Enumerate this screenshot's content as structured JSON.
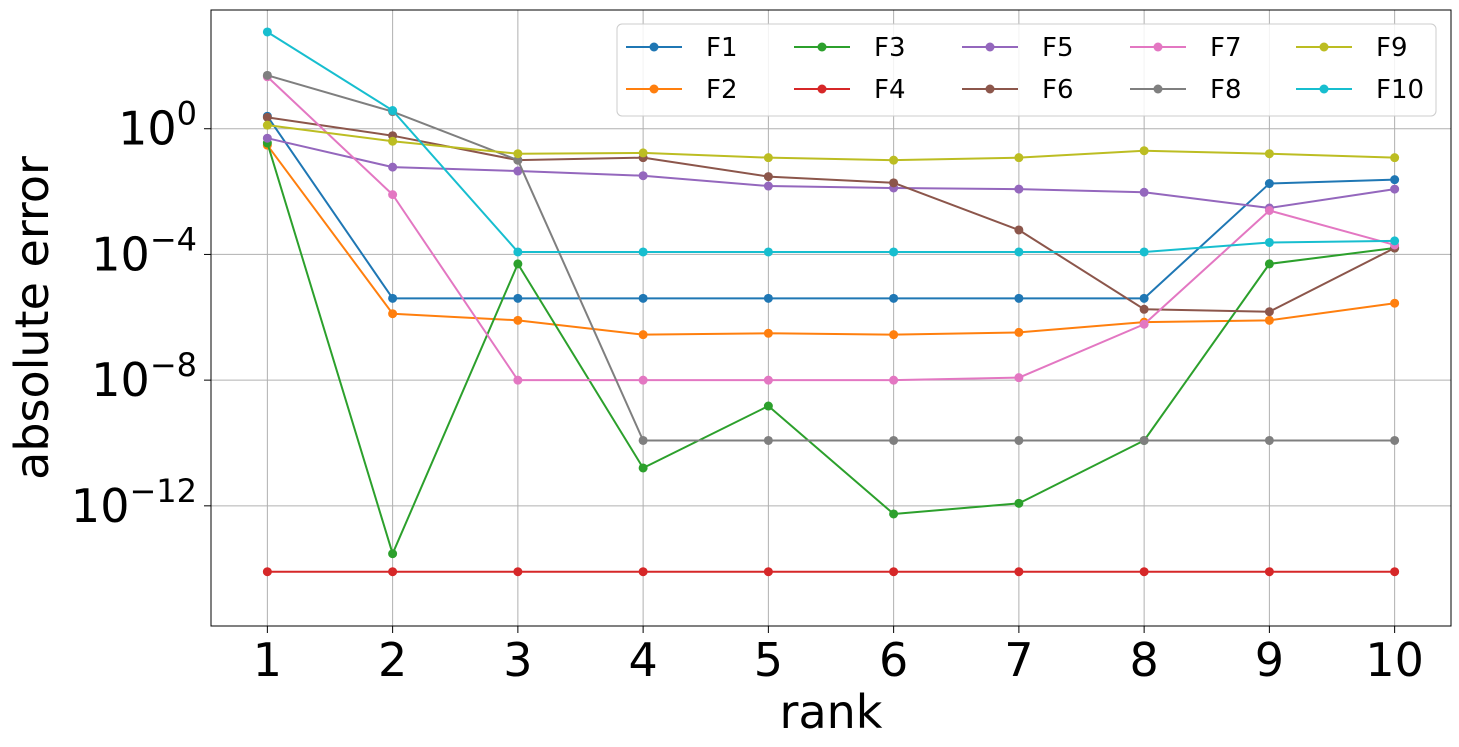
{
  "chart_data": {
    "type": "line",
    "title": "",
    "xlabel": "rank",
    "ylabel": "absolute error",
    "y_scale": "log",
    "x": [
      1,
      2,
      3,
      4,
      5,
      6,
      7,
      8,
      9,
      10
    ],
    "x_ticks": [
      "1",
      "2",
      "3",
      "4",
      "5",
      "6",
      "7",
      "8",
      "9",
      "10"
    ],
    "y_ticks": [
      {
        "value": 1e-12,
        "base": "10",
        "exp": "−12"
      },
      {
        "value": 1e-08,
        "base": "10",
        "exp": "−8"
      },
      {
        "value": 0.0001,
        "base": "10",
        "exp": "−4"
      },
      {
        "value": 1,
        "base": "10",
        "exp": "0"
      }
    ],
    "ylim": [
      1.5e-16,
      6000
    ],
    "xlim": [
      0.55,
      10.45
    ],
    "grid": true,
    "legend_position": "top-right",
    "series": [
      {
        "name": "F1",
        "color": "#1f77b4",
        "values": [
          2.5,
          4e-06,
          4e-06,
          4e-06,
          4e-06,
          4e-06,
          4e-06,
          4e-06,
          0.018,
          0.024
        ]
      },
      {
        "name": "F2",
        "color": "#ff7f0e",
        "values": [
          0.3,
          1.3e-06,
          8e-07,
          2.8e-07,
          3.1e-07,
          2.8e-07,
          3.3e-07,
          7e-07,
          8e-07,
          2.8e-06
        ]
      },
      {
        "name": "F3",
        "color": "#2ca02c",
        "values": [
          0.35,
          3e-14,
          5e-05,
          1.6e-11,
          1.5e-09,
          5.5e-13,
          1.2e-12,
          1.2e-10,
          5e-05,
          0.00016
        ]
      },
      {
        "name": "F4",
        "color": "#d62728",
        "values": [
          8e-15,
          8e-15,
          8e-15,
          8e-15,
          8e-15,
          8e-15,
          8e-15,
          8e-15,
          8e-15,
          8e-15
        ]
      },
      {
        "name": "F5",
        "color": "#9467bd",
        "values": [
          0.5,
          0.06,
          0.045,
          0.032,
          0.015,
          0.013,
          0.012,
          0.0095,
          0.003,
          0.012
        ]
      },
      {
        "name": "F6",
        "color": "#8c564b",
        "values": [
          2.3,
          0.6,
          0.1,
          0.12,
          0.03,
          0.019,
          0.0006,
          1.8e-06,
          1.5e-06,
          0.00016
        ]
      },
      {
        "name": "F7",
        "color": "#e377c2",
        "values": [
          45,
          0.008,
          1e-08,
          1e-08,
          1e-08,
          1e-08,
          1.2e-08,
          6e-07,
          0.0025,
          0.0002
        ]
      },
      {
        "name": "F8",
        "color": "#7f7f7f",
        "values": [
          50,
          3.5,
          0.1,
          1.2e-10,
          1.2e-10,
          1.2e-10,
          1.2e-10,
          1.2e-10,
          1.2e-10,
          1.2e-10
        ]
      },
      {
        "name": "F9",
        "color": "#bcbd22",
        "values": [
          1.3,
          0.4,
          0.16,
          0.17,
          0.12,
          0.1,
          0.12,
          0.2,
          0.16,
          0.12
        ]
      },
      {
        "name": "F10",
        "color": "#17becf",
        "values": [
          1200,
          3.8,
          0.00012,
          0.00012,
          0.00012,
          0.00012,
          0.00012,
          0.00012,
          0.00024,
          0.00027
        ]
      }
    ]
  }
}
